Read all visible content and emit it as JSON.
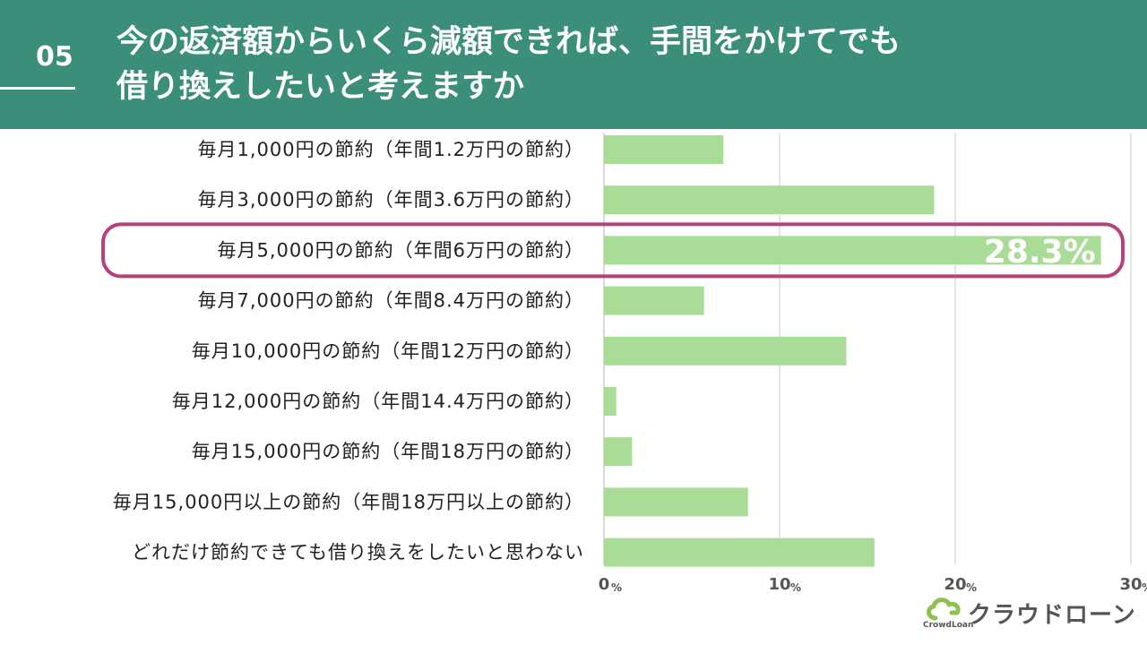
{
  "header": {
    "number": "05",
    "title_line1": "今の返済額からいくら減額できれば、手間をかけてでも",
    "title_line2": "借り換えしたいと考えますか"
  },
  "chart_data": {
    "type": "bar",
    "orientation": "horizontal",
    "categories": [
      "毎月1,000円の節約（年間1.2万円の節約）",
      "毎月3,000円の節約（年間3.6万円の節約）",
      "毎月5,000円の節約（年間6万円の節約）",
      "毎月7,000円の節約（年間8.4万円の節約）",
      "毎月10,000円の節約（年間12万円の節約）",
      "毎月12,000円の節約（年間14.4万円の節約）",
      "毎月15,000円の節約（年間18万円の節約）",
      "毎月15,000円以上の節約（年間18万円以上の節約）",
      "どれだけ節約できても借り換えをしたいと思わない"
    ],
    "values": [
      6.8,
      18.8,
      28.3,
      5.7,
      13.8,
      0.7,
      1.6,
      8.2,
      15.4
    ],
    "xlim": [
      0,
      30
    ],
    "ticks": [
      "0",
      "10",
      "20",
      "30"
    ],
    "tick_unit": "%",
    "highlight_index": 2,
    "highlight_label": "28.3%",
    "bar_color": "#a9dc97",
    "highlight_color": "#b8407e",
    "axis_color": "#cccccc"
  },
  "logo": {
    "jp": "クラウドローン",
    "en": "CrowdLoan",
    "mark_color": "#8cc152"
  }
}
